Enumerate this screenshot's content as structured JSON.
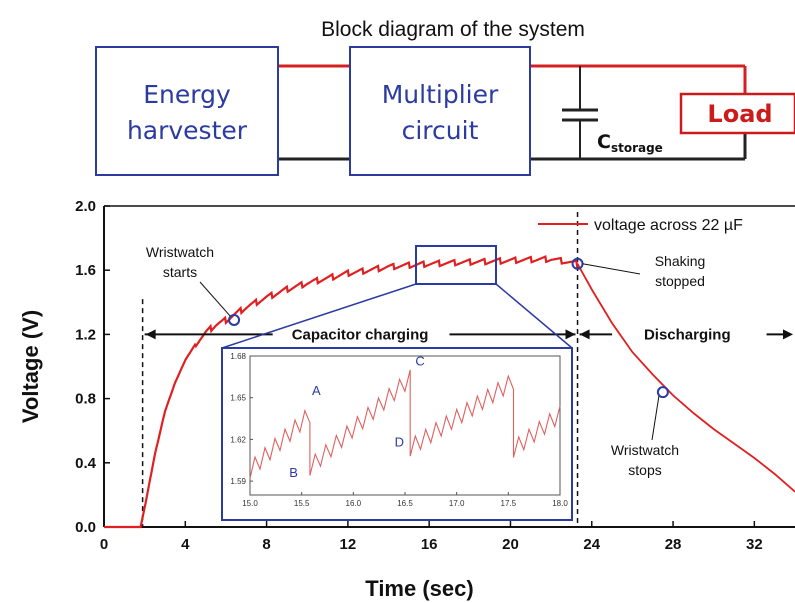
{
  "diagram": {
    "title": "Block diagram of the system",
    "box1_line1": "Energy",
    "box1_line2": "harvester",
    "box2_line1": "Multiplier",
    "box2_line2": "circuit",
    "cap_main": "C",
    "cap_sub": "storage",
    "load": "Load",
    "colors": {
      "box": "#2b3ba0",
      "wire_top": "#d42020",
      "wire_bottom": "#222222",
      "load": "#cc1b1b"
    }
  },
  "chart_data": {
    "type": "line",
    "xlabel": "Time (sec)",
    "ylabel": "Voltage (V)",
    "xlim": [
      0,
      34
    ],
    "ylim": [
      0,
      2
    ],
    "xticks": [
      0,
      4,
      8,
      12,
      16,
      20,
      24,
      28,
      32
    ],
    "yticks": [
      0.0,
      0.4,
      0.8,
      1.2,
      1.6,
      2.0
    ],
    "ytick_labels": [
      "0.0",
      "0.4",
      "0.8",
      "1.2",
      "1.6",
      "2.0"
    ],
    "legend": "voltage across 22 µF",
    "legend_position": "top-right",
    "line_color": "#e02020",
    "series": [
      {
        "x": [
          0,
          1.8,
          2.0,
          2.5,
          3,
          3.5,
          4,
          4.5,
          5,
          5.5,
          6,
          6.5,
          7,
          8,
          9,
          10,
          11,
          12,
          13,
          14,
          15,
          16,
          17,
          18,
          19,
          20,
          21,
          22,
          23.3
        ],
        "y": [
          0.0,
          0.0,
          0.12,
          0.45,
          0.72,
          0.9,
          1.04,
          1.14,
          1.21,
          1.26,
          1.29,
          1.33,
          1.37,
          1.43,
          1.48,
          1.52,
          1.55,
          1.58,
          1.6,
          1.62,
          1.63,
          1.64,
          1.645,
          1.65,
          1.655,
          1.66,
          1.665,
          1.67,
          1.64
        ]
      },
      {
        "x": [
          23.3,
          24,
          25,
          26,
          27,
          28,
          29,
          30,
          31,
          32,
          33,
          34
        ],
        "y": [
          1.64,
          1.48,
          1.27,
          1.09,
          0.95,
          0.82,
          0.71,
          0.61,
          0.52,
          0.43,
          0.33,
          0.22
        ]
      }
    ],
    "markers": [
      {
        "x": 6.4,
        "y": 1.29,
        "label_line1": "Wristwatch",
        "label_line2": "starts"
      },
      {
        "x": 23.3,
        "y": 1.64,
        "label_line1": "Shaking",
        "label_line2": "stopped"
      },
      {
        "x": 27.5,
        "y": 0.84,
        "label_line1": "Wristwatch",
        "label_line2": "stops"
      }
    ],
    "regions": [
      {
        "label": "Capacitor charging"
      },
      {
        "label": "Discharging"
      }
    ],
    "inset": {
      "xlim": [
        15.0,
        18.0
      ],
      "ylim": [
        1.58,
        1.68
      ],
      "xticks": [
        "15.0",
        "15.5",
        "16.0",
        "16.5",
        "17.0",
        "17.5",
        "18.0"
      ],
      "yticks": [
        "1.59",
        "1.62",
        "1.65",
        "1.68"
      ],
      "points": [
        "A",
        "B",
        "C",
        "D"
      ]
    }
  }
}
